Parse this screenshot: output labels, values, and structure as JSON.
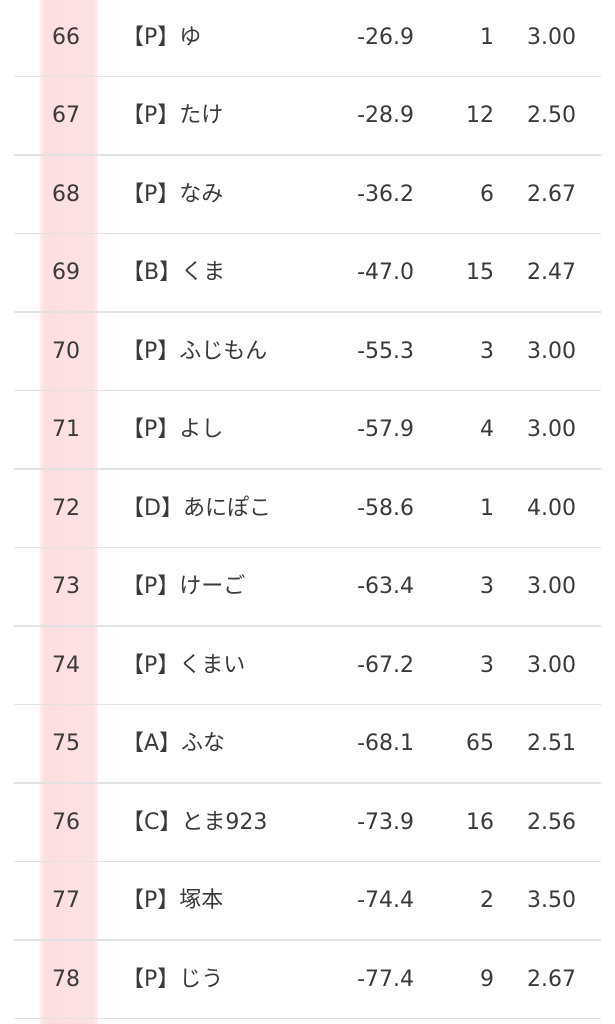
{
  "accent": {
    "rank_column_bg": "#fde0e2",
    "separator": "#e2e2e2"
  },
  "rows": [
    {
      "rank": "66",
      "name": "【P】ゆ",
      "score": "-26.9",
      "games": "1",
      "avg": "3.00"
    },
    {
      "rank": "67",
      "name": "【P】たけ",
      "score": "-28.9",
      "games": "12",
      "avg": "2.50"
    },
    {
      "rank": "68",
      "name": "【P】なみ",
      "score": "-36.2",
      "games": "6",
      "avg": "2.67"
    },
    {
      "rank": "69",
      "name": "【B】くま",
      "score": "-47.0",
      "games": "15",
      "avg": "2.47"
    },
    {
      "rank": "70",
      "name": "【P】ふじもん",
      "score": "-55.3",
      "games": "3",
      "avg": "3.00"
    },
    {
      "rank": "71",
      "name": "【P】よし",
      "score": "-57.9",
      "games": "4",
      "avg": "3.00"
    },
    {
      "rank": "72",
      "name": "【D】あにぽこ",
      "score": "-58.6",
      "games": "1",
      "avg": "4.00"
    },
    {
      "rank": "73",
      "name": "【P】けーご",
      "score": "-63.4",
      "games": "3",
      "avg": "3.00"
    },
    {
      "rank": "74",
      "name": "【P】くまい",
      "score": "-67.2",
      "games": "3",
      "avg": "3.00"
    },
    {
      "rank": "75",
      "name": "【A】ふな",
      "score": "-68.1",
      "games": "65",
      "avg": "2.51"
    },
    {
      "rank": "76",
      "name": "【C】とま923",
      "score": "-73.9",
      "games": "16",
      "avg": "2.56"
    },
    {
      "rank": "77",
      "name": "【P】塚本",
      "score": "-74.4",
      "games": "2",
      "avg": "3.50"
    },
    {
      "rank": "78",
      "name": "【P】じう",
      "score": "-77.4",
      "games": "9",
      "avg": "2.67"
    }
  ]
}
